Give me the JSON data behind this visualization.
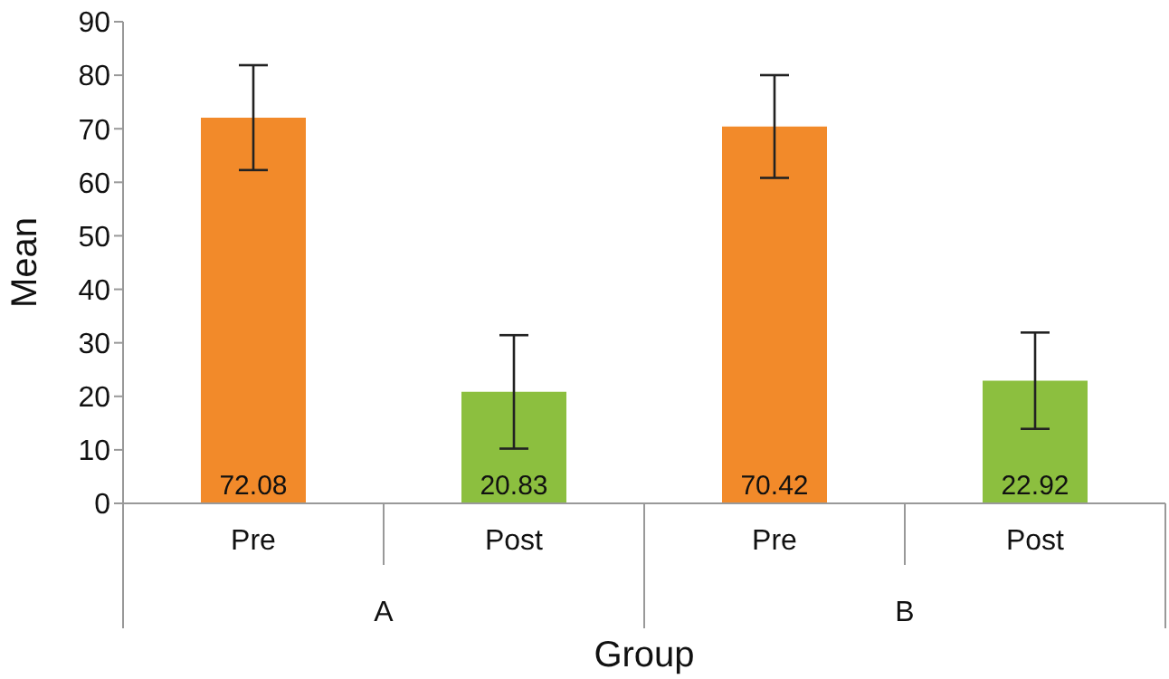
{
  "chart_data": {
    "type": "bar",
    "xlabel": "Group",
    "ylabel": "Mean",
    "categories": [
      "Pre",
      "Post",
      "Pre",
      "Post"
    ],
    "values": [
      72.08,
      20.83,
      70.42,
      22.92
    ],
    "errors": [
      9.8,
      10.6,
      9.6,
      9.0
    ],
    "colors": [
      "#f28a2a",
      "#8cbf3f",
      "#f28a2a",
      "#8cbf3f"
    ],
    "annotations": [
      "A",
      "B"
    ],
    "data_labels": true,
    "ylim": [
      0,
      90
    ],
    "yticks": [
      0,
      10,
      20,
      30,
      40,
      50,
      60,
      70,
      80,
      90
    ]
  }
}
